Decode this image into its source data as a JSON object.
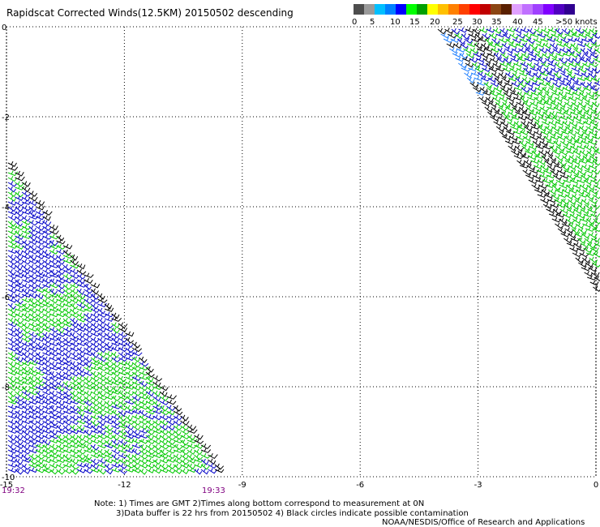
{
  "title": "Rapidscat Corrected Winds(12.5KM) 20150502 descending",
  "colorbar": {
    "labels": [
      "0",
      "5",
      "10",
      "15",
      "20",
      "25",
      "30",
      "35",
      "40",
      "45",
      ">50 knots"
    ],
    "colors": [
      "#4d4d4d",
      "#9a9a9a",
      "#00bfff",
      "#0080ff",
      "#0000ff",
      "#00ff00",
      "#00a000",
      "#ffff00",
      "#ffc000",
      "#ff8000",
      "#ff4000",
      "#ff0000",
      "#c00000",
      "#8b4513",
      "#5a2000",
      "#e0a0ff",
      "#c070ff",
      "#a040ff",
      "#8000ff",
      "#5000c0",
      "#300090"
    ]
  },
  "axes": {
    "x_ticks": [
      "-15",
      "-12",
      "-9",
      "-6",
      "-3",
      "0"
    ],
    "y_ticks": [
      "0",
      "-2",
      "-4",
      "-6",
      "-8",
      "-10"
    ],
    "x_range": [
      -15,
      0
    ],
    "y_range": [
      0,
      -10
    ]
  },
  "map": {
    "barb_colors": {
      "dark": "#000000",
      "blue": "#0000c8",
      "green": "#00c800",
      "lightblue": "#2080ff"
    },
    "swaths": [
      {
        "name": "swath-west",
        "lon_start": -15,
        "lat_top": -2.8,
        "lat_bottom": -10
      },
      {
        "name": "swath-east",
        "lon_start": -3.5,
        "lat_top": 0,
        "lat_bottom": -5.8
      }
    ]
  },
  "time_labels": {
    "left": "19:32",
    "right": "19:33"
  },
  "notes": {
    "line1": "Note: 1) Times are GMT 2)Times along bottom correspond to measurement at 0N",
    "line2": "3)Data buffer is 22 hrs from 20150502 4) Black circles indicate possible contamination",
    "line3": "NOAA/NESDIS/Office of Research and Applications"
  }
}
